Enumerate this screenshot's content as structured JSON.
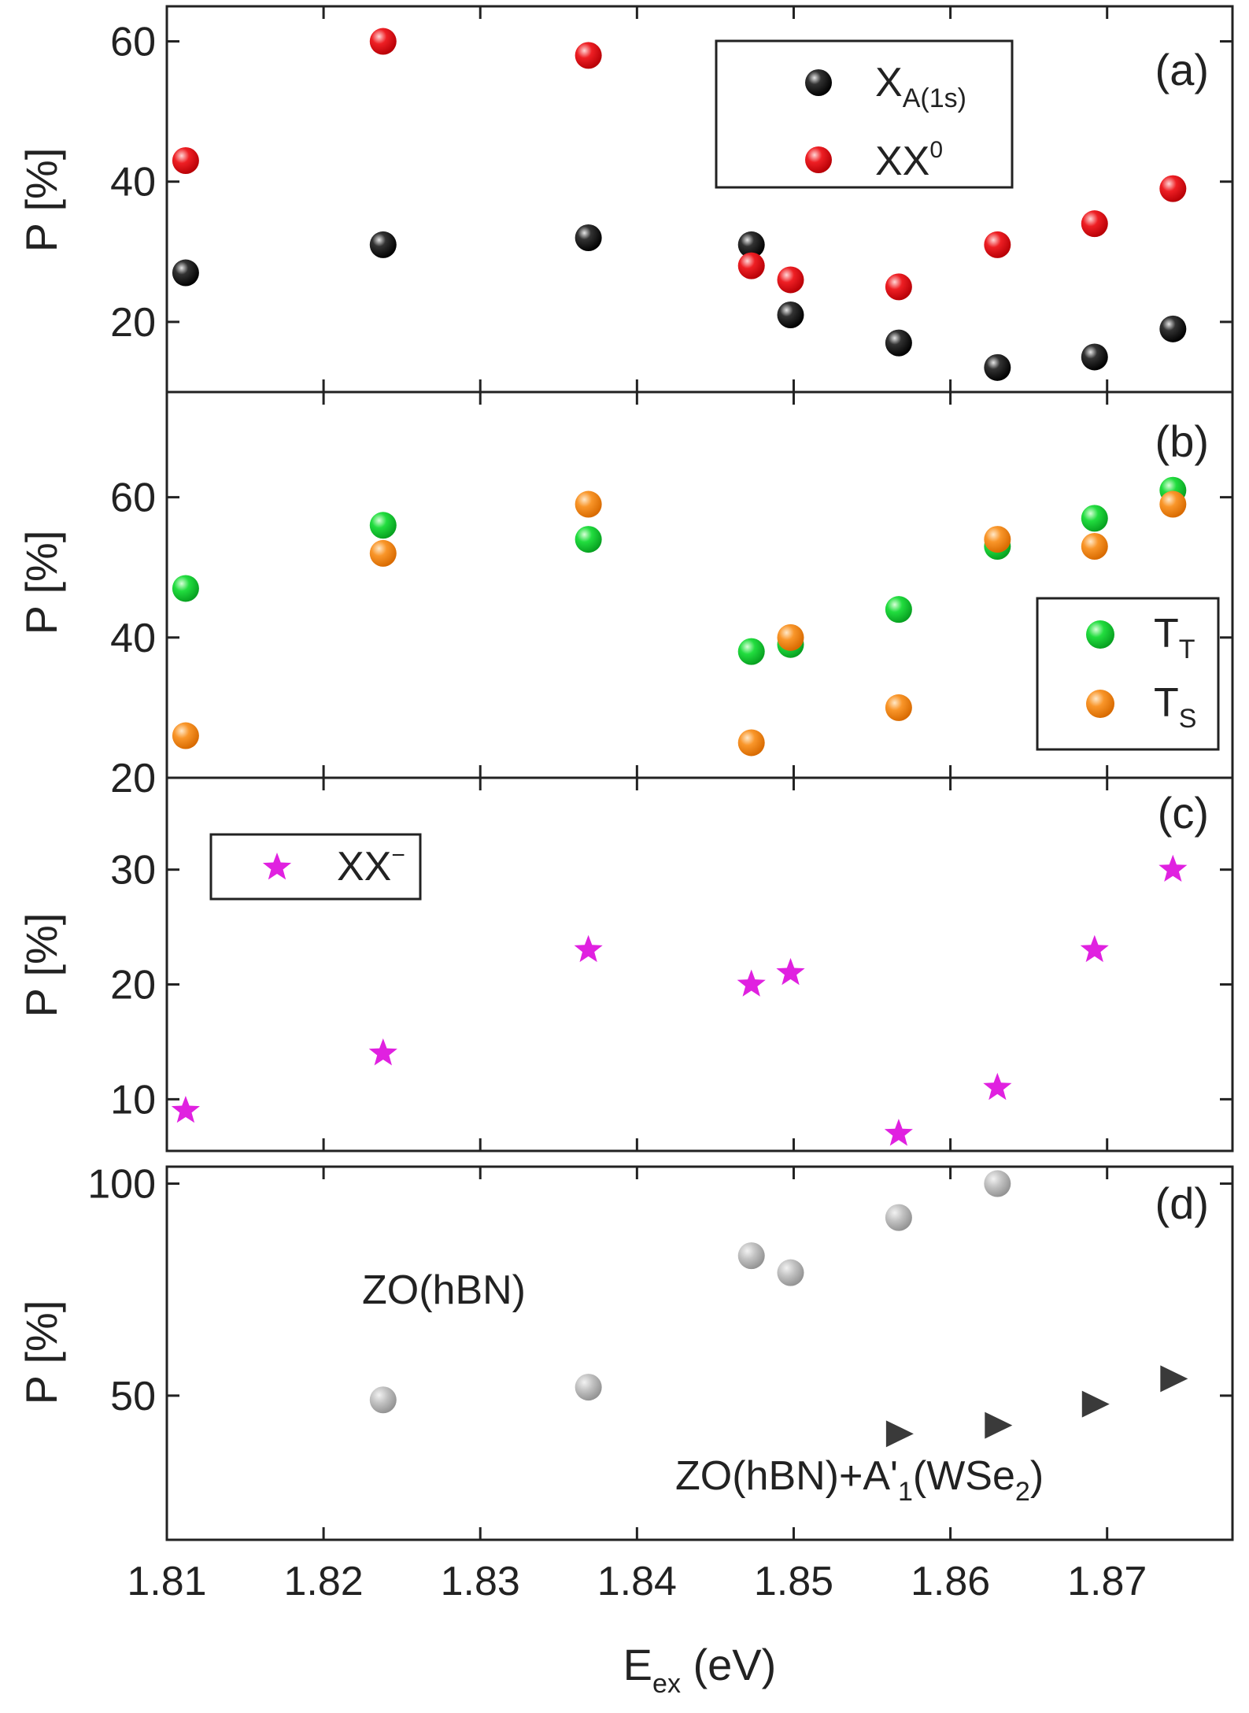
{
  "chart_data": {
    "type": "scatter",
    "xlabel": "E",
    "xlabel_sub": "ex",
    "xlabel_unit": " (eV)",
    "xlim": [
      1.81,
      1.878
    ],
    "xticks": [
      1.81,
      1.82,
      1.83,
      1.84,
      1.85,
      1.86,
      1.87
    ],
    "xtick_labels": [
      "1.81",
      "1.82",
      "1.83",
      "1.84",
      "1.85",
      "1.86",
      "1.87"
    ],
    "panels": [
      {
        "id": "a",
        "panel_label": "(a)",
        "ylabel": "P [%]",
        "ylim": [
          10,
          65
        ],
        "yticks": [
          20,
          40,
          60
        ],
        "ytick_labels": [
          "20",
          "40",
          "60"
        ],
        "legend_position": "top-right",
        "series": [
          {
            "name": "X",
            "name_sub": "A(1s)",
            "marker": "sphere",
            "color": "#111111",
            "x": [
              1.8112,
              1.8238,
              1.8369,
              1.8473,
              1.8498,
              1.8567,
              1.863,
              1.8692,
              1.8742
            ],
            "y": [
              27,
              31,
              32,
              31,
              21,
              17,
              13.5,
              15,
              19
            ]
          },
          {
            "name": "XX",
            "name_sup": "0",
            "marker": "sphere",
            "color": "#e8161e",
            "x": [
              1.8112,
              1.8238,
              1.8369,
              1.8473,
              1.8498,
              1.8567,
              1.863,
              1.8692,
              1.8742
            ],
            "y": [
              43,
              60,
              58,
              28,
              26,
              25,
              31,
              34,
              39
            ]
          }
        ]
      },
      {
        "id": "b",
        "panel_label": "(b)",
        "ylabel": "P [%]",
        "ylim": [
          20,
          75
        ],
        "yticks": [
          20,
          40,
          60
        ],
        "ytick_labels": [
          "20",
          "40",
          "60"
        ],
        "legend_position": "center-right",
        "series": [
          {
            "name": "T",
            "name_sub": "T",
            "marker": "sphere",
            "color": "#1ed83a",
            "x": [
              1.8112,
              1.8238,
              1.8369,
              1.8473,
              1.8498,
              1.8567,
              1.863,
              1.8692,
              1.8742
            ],
            "y": [
              47,
              56,
              54,
              38,
              39,
              44,
              53,
              57,
              61
            ]
          },
          {
            "name": "T",
            "name_sub": "S",
            "marker": "sphere",
            "color": "#f7921e",
            "x": [
              1.8112,
              1.8238,
              1.8369,
              1.8473,
              1.8498,
              1.8567,
              1.863,
              1.8692,
              1.8742
            ],
            "y": [
              26,
              52,
              59,
              25,
              40,
              30,
              54,
              53,
              59
            ]
          }
        ]
      },
      {
        "id": "c",
        "panel_label": "(c)",
        "ylabel": "P [%]",
        "ylim": [
          5.5,
          38
        ],
        "yticks": [
          10,
          20,
          30
        ],
        "ytick_labels": [
          "10",
          "20",
          "30"
        ],
        "legend_position": "top-left",
        "series": [
          {
            "name": "XX",
            "name_sup": "−",
            "marker": "star",
            "color": "#e021e0",
            "x": [
              1.8112,
              1.8238,
              1.8369,
              1.8473,
              1.8498,
              1.8567,
              1.863,
              1.8692,
              1.8742
            ],
            "y": [
              9,
              14,
              23,
              20,
              21,
              7,
              11,
              23,
              30
            ]
          }
        ]
      },
      {
        "id": "d",
        "panel_label": "(d)",
        "ylabel": "P [%]",
        "ylim": [
          16,
          104
        ],
        "yticks": [
          50,
          100
        ],
        "ytick_labels": [
          "50",
          "100"
        ],
        "annotations": [
          {
            "id": "zo",
            "text": "ZO(hBN)"
          },
          {
            "id": "zoa",
            "text": "ZO(hBN)+A'",
            "sub1": "1",
            "mid": "(WSe",
            "sub2": "2",
            "end": ")"
          }
        ],
        "series": [
          {
            "name": "ZO(hBN)",
            "marker": "sphere",
            "color": "#b8b8b8",
            "x": [
              1.8238,
              1.8369,
              1.8473,
              1.8498,
              1.8567,
              1.863
            ],
            "y": [
              49,
              52,
              83,
              79,
              92,
              100
            ]
          },
          {
            "name": "ZO(hBN)+A'1(WSe2)",
            "marker": "triangle-right",
            "color": "#3a3a3a",
            "x": [
              1.8567,
              1.863,
              1.8692,
              1.8742
            ],
            "y": [
              41,
              43,
              48,
              54
            ]
          }
        ]
      }
    ]
  }
}
